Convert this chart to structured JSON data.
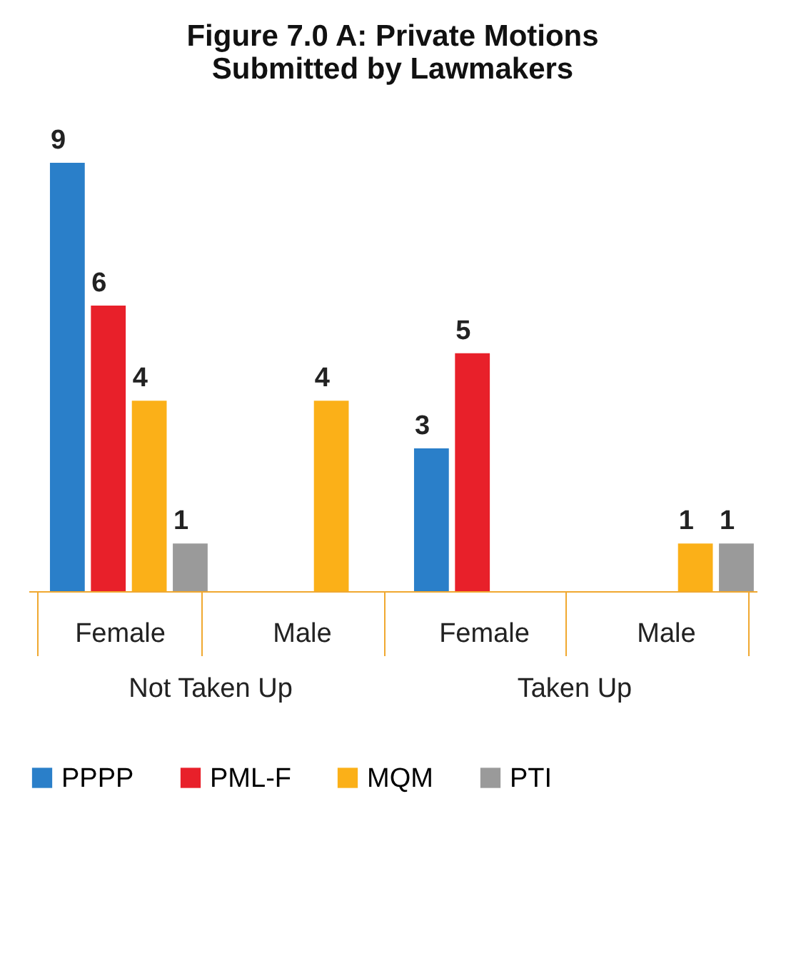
{
  "chart_data": {
    "type": "bar",
    "title": "Figure 7.0 A: Private Motions Submitted by Lawmakers",
    "categories": [
      "Female",
      "Male",
      "Female",
      "Male"
    ],
    "series": [
      {
        "name": "PPPP",
        "color": "#2a7fc9",
        "values": [
          9,
          null,
          3,
          null
        ]
      },
      {
        "name": "PML-F",
        "color": "#e8202a",
        "values": [
          6,
          null,
          5,
          null
        ]
      },
      {
        "name": "MQM",
        "color": "#fbb018",
        "values": [
          4,
          4,
          null,
          1
        ]
      },
      {
        "name": "PTI",
        "color": "#9a9a9a",
        "values": [
          1,
          null,
          null,
          1
        ]
      }
    ],
    "annotations": [
      "Not Taken Up",
      "Taken Up"
    ],
    "data_labels": true,
    "grid": false,
    "legend": "bottom"
  }
}
